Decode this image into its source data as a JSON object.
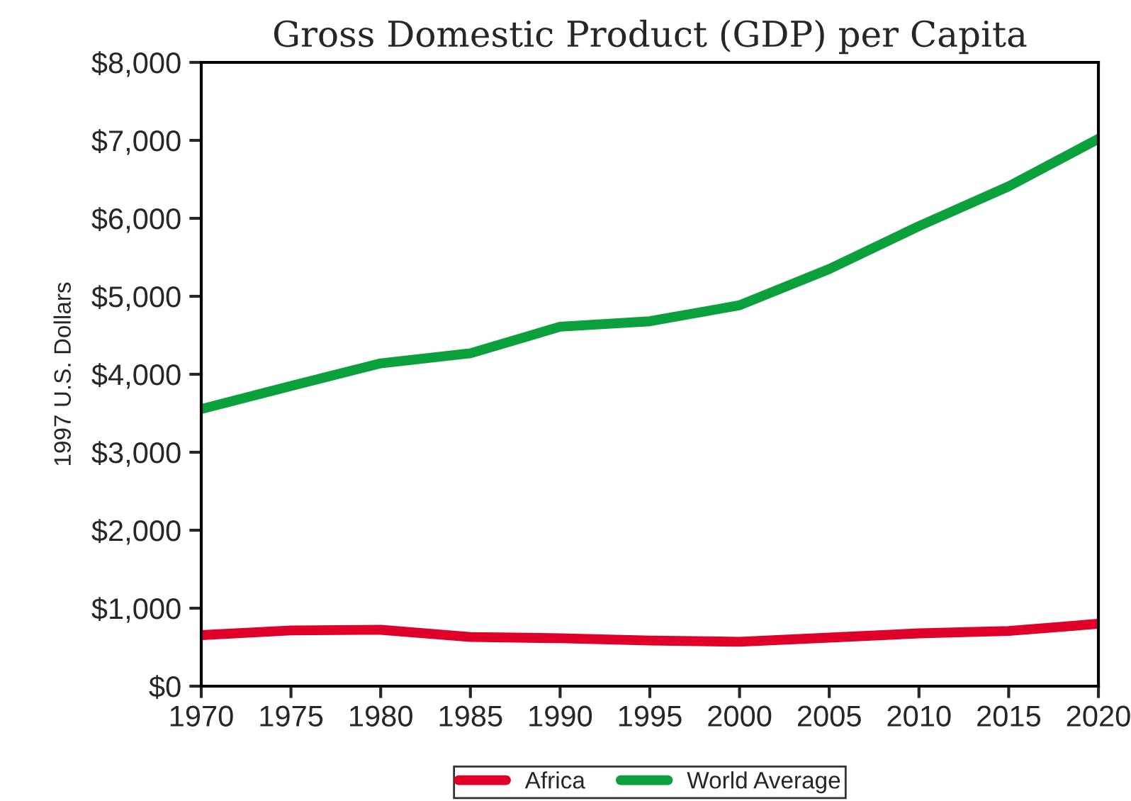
{
  "chart_data": {
    "type": "line",
    "title": "Gross Domestic Product (GDP) per Capita",
    "ylabel": "1997 U.S. Dollars",
    "x": [
      1970,
      1975,
      1980,
      1985,
      1990,
      1995,
      2000,
      2005,
      2010,
      2015,
      2020
    ],
    "series": [
      {
        "name": "Africa",
        "color": "#e0002a",
        "values": [
          654,
          715,
          723,
          631,
          615,
          585,
          569,
          623,
          677,
          708,
          800
        ]
      },
      {
        "name": "World Average",
        "color": "#0aa03c",
        "values": [
          3554,
          3850,
          4140,
          4270,
          4610,
          4680,
          4885,
          5350,
          5900,
          6410,
          7020
        ]
      }
    ],
    "xlim": [
      1970,
      2020
    ],
    "xticks": [
      1970,
      1975,
      1980,
      1985,
      1990,
      1995,
      2000,
      2005,
      2010,
      2015,
      2020
    ],
    "ylim": [
      0,
      8000
    ],
    "yticks": [
      {
        "value": 0,
        "label": "$0"
      },
      {
        "value": 1000,
        "label": "$1,000"
      },
      {
        "value": 2000,
        "label": "$2,000"
      },
      {
        "value": 3000,
        "label": "$3,000"
      },
      {
        "value": 4000,
        "label": "$4,000"
      },
      {
        "value": 5000,
        "label": "$5,000"
      },
      {
        "value": 6000,
        "label": "$6,000"
      },
      {
        "value": 7000,
        "label": "$7,000"
      },
      {
        "value": 8000,
        "label": "$8,000"
      }
    ],
    "grid": false,
    "legend": "bottom",
    "marker": "none",
    "line_style": "solid"
  }
}
